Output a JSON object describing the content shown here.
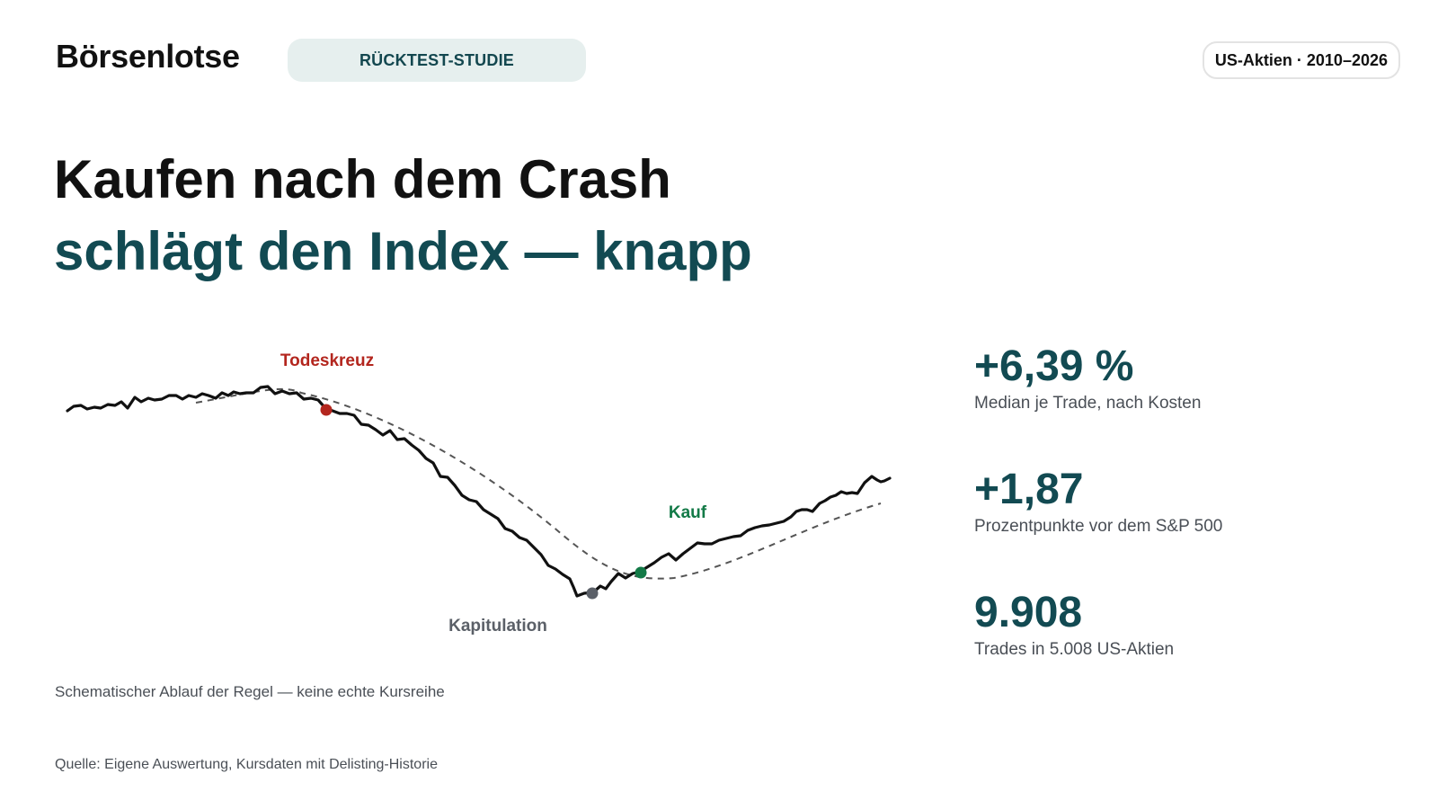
{
  "header": {
    "brand": "Börsenlotse",
    "category_pill": "RÜCKTEST-STUDIE",
    "period_badge": "US-Aktien · 2010–2026"
  },
  "headline": {
    "line1": "Kaufen nach dem Crash",
    "line2": "schlägt den Index — knapp"
  },
  "chart": {
    "markers": {
      "todeskreuz": "Todeskreuz",
      "kapitulation": "Kapitulation",
      "kauf": "Kauf"
    },
    "colors": {
      "price_line": "#111111",
      "trend_line": "#555555",
      "todeskreuz": "#b3261e",
      "kapitulation": "#5b6068",
      "kauf": "#137a47"
    },
    "caption": "Schematischer Ablauf der Regel — keine echte Kursreihe"
  },
  "stats": [
    {
      "value": "+6,39 %",
      "label": "Median je Trade, nach Kosten"
    },
    {
      "value": "+1,87",
      "label": "Prozentpunkte vor dem S&P 500"
    },
    {
      "value": "9.908",
      "label": "Trades in 5.008 US-Aktien"
    }
  ],
  "footer": {
    "source": "Quelle: Eigene Auswertung, Kursdaten mit Delisting-Historie"
  }
}
